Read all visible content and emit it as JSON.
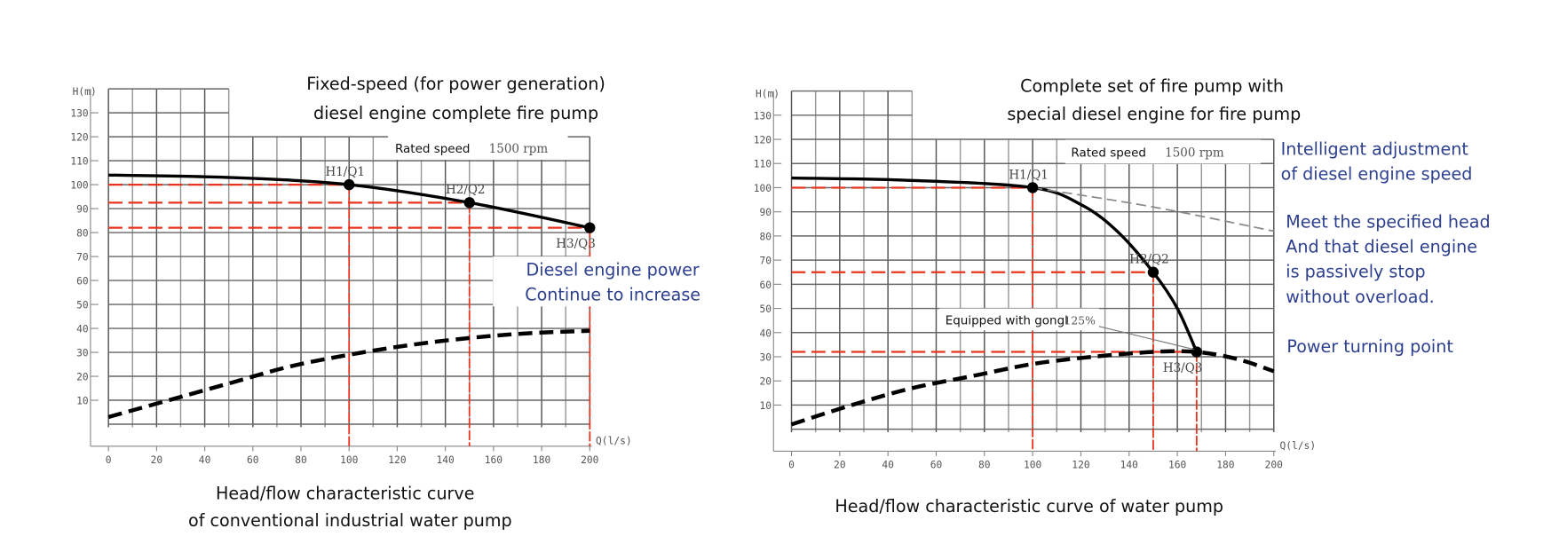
{
  "chart_data": [
    {
      "type": "line",
      "title": "Fixed-speed (for power generation)\ndiesel engine complete fire pump",
      "caption": "Head/flow characteristic curve\nof conventional industrial water pump",
      "xlabel": "Q(l/s)",
      "ylabel": "H(m)",
      "xlim": [
        0,
        200
      ],
      "ylim": [
        0,
        130
      ],
      "xticks": [
        0,
        20,
        40,
        60,
        80,
        100,
        120,
        140,
        160,
        180,
        200
      ],
      "yticks": [
        10,
        20,
        30,
        40,
        50,
        60,
        70,
        80,
        90,
        100,
        110,
        120,
        130
      ],
      "grid": true,
      "rated_speed_label": "Rated speed",
      "rated_speed_value": "1500 rpm",
      "series": [
        {
          "style": "solid",
          "color": "#000000",
          "x": [
            0,
            50,
            100,
            150,
            200
          ],
          "y": [
            104,
            103,
            100,
            92.5,
            82
          ]
        },
        {
          "style": "dashed",
          "color": "#000000",
          "x": [
            0,
            25,
            50,
            75,
            100,
            125,
            150,
            175,
            200
          ],
          "y": [
            3,
            10,
            17,
            24,
            29,
            33,
            36,
            38,
            39
          ]
        }
      ],
      "points": [
        {
          "label": "H1/Q1",
          "x": 100,
          "y": 100
        },
        {
          "label": "H2/Q2",
          "x": 150,
          "y": 92.5
        },
        {
          "label": "H3/Q3",
          "x": 200,
          "y": 82
        }
      ],
      "reference_color": "#e8341c",
      "annotations": [
        "Diesel engine power",
        "Continue to increase"
      ]
    },
    {
      "type": "line",
      "title": "Complete set of fire pump with\nspecial diesel engine for fire pump",
      "caption": "Head/flow characteristic curve of water pump",
      "xlabel": "Q(l/s)",
      "ylabel": "H(m)",
      "xlim": [
        0,
        200
      ],
      "ylim": [
        0,
        130
      ],
      "xticks": [
        0,
        20,
        40,
        60,
        80,
        100,
        120,
        140,
        160,
        180,
        200
      ],
      "yticks": [
        10,
        20,
        30,
        40,
        50,
        60,
        70,
        80,
        90,
        100,
        110,
        120,
        130
      ],
      "grid": true,
      "rated_speed_label": "Rated speed",
      "rated_speed_value": "1500 rpm",
      "equipped_label": "Equipped with gongl",
      "equipped_value": "125%",
      "series": [
        {
          "style": "solid",
          "color": "#000000",
          "x": [
            0,
            50,
            100,
            120,
            135,
            150,
            160,
            168
          ],
          "y": [
            104,
            103,
            100,
            93,
            82,
            65,
            50,
            32
          ]
        },
        {
          "style": "dashed",
          "color": "#000000",
          "x": [
            0,
            25,
            50,
            75,
            100,
            125,
            150,
            168,
            185,
            200
          ],
          "y": [
            2,
            10,
            17,
            22,
            27,
            30,
            32,
            32,
            29,
            24
          ]
        },
        {
          "style": "dashed-thin",
          "color": "#888888",
          "x": [
            100,
            150,
            200
          ],
          "y": [
            100,
            92,
            82
          ]
        }
      ],
      "points": [
        {
          "label": "H1/Q1",
          "x": 100,
          "y": 100
        },
        {
          "label": "H2/Q2",
          "x": 150,
          "y": 65
        },
        {
          "label": "H3/Q3",
          "x": 168,
          "y": 32
        }
      ],
      "reference_color": "#e8341c",
      "annotations": [
        "Intelligent adjustment",
        "of diesel engine speed",
        "Meet the specified head",
        "And that diesel engine",
        "is passively stop",
        "without overload.",
        "Power turning point"
      ]
    }
  ]
}
